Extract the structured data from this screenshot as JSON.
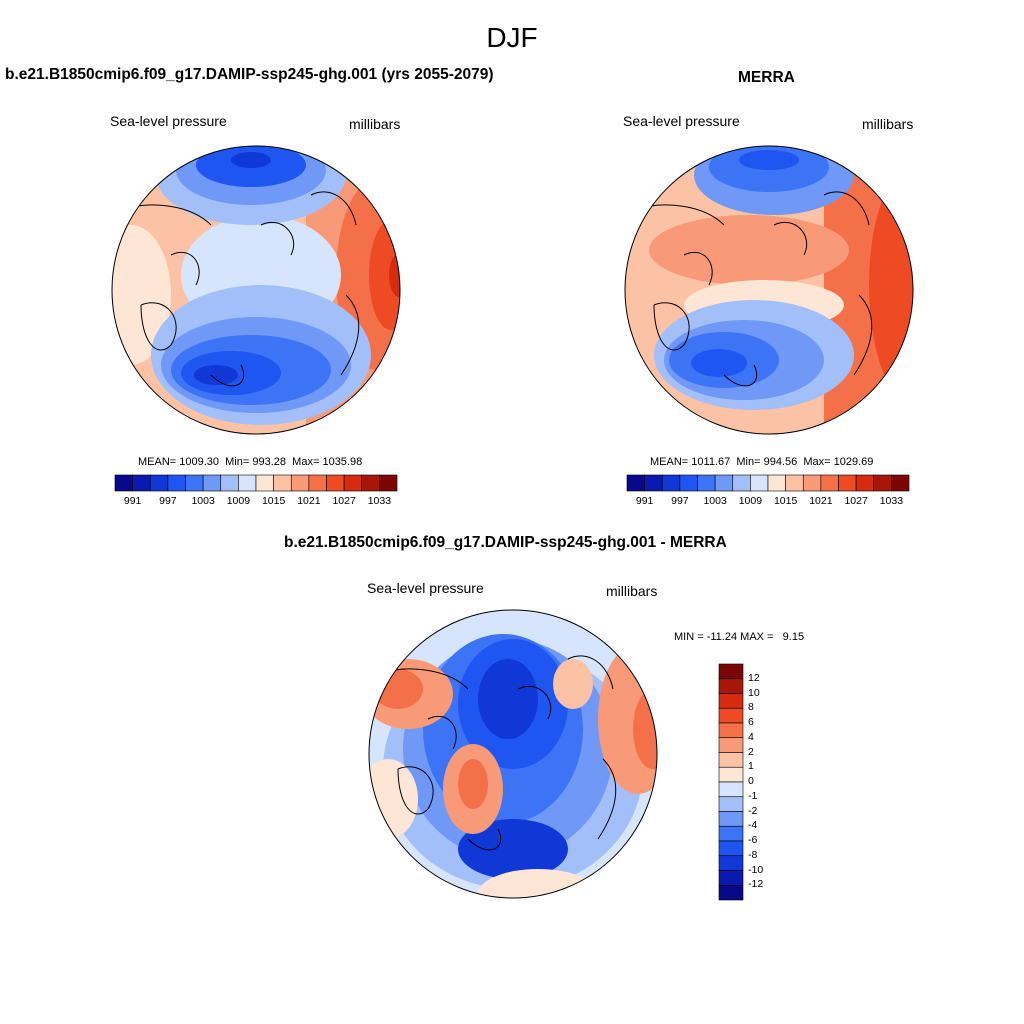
{
  "figure": {
    "title": "DJF"
  },
  "palette": [
    "#08088a",
    "#0a1ab0",
    "#0f38d6",
    "#1f55f0",
    "#3d74f5",
    "#6f98f7",
    "#a3bff9",
    "#d6e5fb",
    "#fde6d6",
    "#fbc2a6",
    "#f89a78",
    "#f47049",
    "#ee4a24",
    "#d52c10",
    "#a81608",
    "#7a0505"
  ],
  "panels": {
    "model": {
      "title": "b.e21.B1850cmip6.f09_g17.DAMIP-ssp245-ghg.001 (yrs 2055-2079)",
      "left_label": "Sea-level pressure",
      "right_label": "millibars",
      "mean_label": "MEAN=",
      "mean": "1009.30",
      "min_label": "Min=",
      "min": "993.28",
      "max_label": "Max=",
      "max": "1035.98",
      "colorbar_ticks": [
        "991",
        "997",
        "1003",
        "1009",
        "1015",
        "1021",
        "1027",
        "1033"
      ]
    },
    "obs": {
      "title": "MERRA",
      "left_label": "Sea-level pressure",
      "right_label": "millibars",
      "mean_label": "MEAN=",
      "mean": "1011.67",
      "min_label": "Min=",
      "min": "994.56",
      "max_label": "Max=",
      "max": "1029.69",
      "colorbar_ticks": [
        "991",
        "997",
        "1003",
        "1009",
        "1015",
        "1021",
        "1027",
        "1033"
      ]
    },
    "diff": {
      "title": "b.e21.B1850cmip6.f09_g17.DAMIP-ssp245-ghg.001 - MERRA",
      "left_label": "Sea-level pressure",
      "right_label": "millibars",
      "min_label": "MIN =",
      "min": "-11.24",
      "max_label": "MAX =",
      "max": "9.15",
      "colorbar_ticks": [
        "12",
        "10",
        "8",
        "6",
        "4",
        "2",
        "1",
        "0",
        "-1",
        "-2",
        "-4",
        "-6",
        "-8",
        "-10",
        "-12"
      ]
    }
  }
}
